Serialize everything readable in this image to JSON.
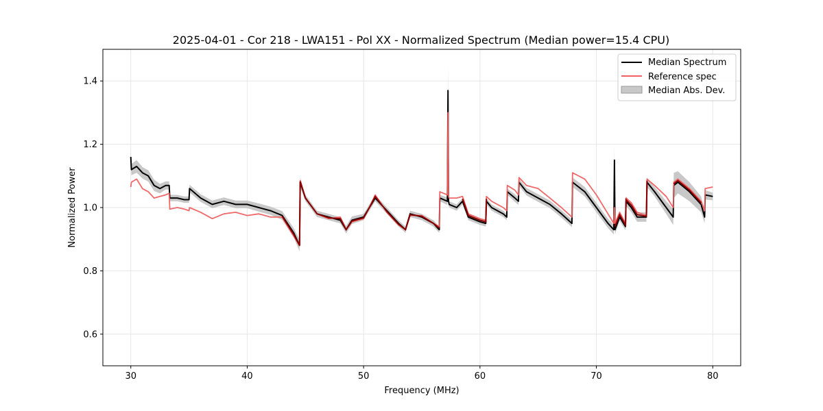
{
  "chart_data": {
    "type": "line",
    "title": "2025-04-01 - Cor 218 - LWA151 - Pol XX - Normalized Spectrum (Median power=15.4 CPU)",
    "xlabel": "Frequency (MHz)",
    "ylabel": "Normalized Power",
    "xlim": [
      27.6,
      82.4
    ],
    "ylim": [
      0.5,
      1.5
    ],
    "xticks": [
      30,
      40,
      50,
      60,
      70,
      80
    ],
    "yticks": [
      0.6,
      0.8,
      1.0,
      1.2,
      1.4
    ],
    "xtick_labels": [
      "30",
      "40",
      "50",
      "60",
      "70",
      "80"
    ],
    "ytick_labels": [
      "0.6",
      "0.8",
      "1.0",
      "1.2",
      "1.4"
    ],
    "grid": true,
    "legend_position": "top-right",
    "colors": {
      "median": "#000000",
      "reference": "#f06060",
      "overlap": "#8b0000",
      "mad_fill": "#c8c8c8",
      "grid": "#e6e6e6"
    },
    "series": [
      {
        "name": "Median Spectrum",
        "x": [
          30.0,
          30.05,
          30.5,
          31.0,
          31.5,
          32.0,
          32.5,
          33.0,
          33.3,
          33.35,
          34.0,
          34.6,
          35.0,
          35.05,
          36.0,
          37.0,
          38.0,
          39.0,
          40.0,
          41.0,
          42.0,
          43.0,
          44.0,
          44.5,
          44.55,
          45.0,
          46.0,
          47.0,
          48.0,
          48.5,
          49.0,
          50.0,
          50.5,
          51.0,
          52.0,
          53.0,
          53.6,
          54.0,
          55.0,
          56.0,
          56.5,
          56.55,
          57.2,
          57.25,
          57.3,
          57.35,
          58.0,
          58.5,
          59.0,
          60.0,
          60.5,
          60.55,
          61.0,
          62.0,
          62.3,
          62.35,
          63.0,
          63.3,
          63.35,
          64.0,
          64.5,
          65.0,
          66.0,
          67.0,
          67.9,
          67.95,
          69.0,
          70.0,
          71.0,
          71.5,
          71.55,
          71.6,
          72.0,
          72.5,
          72.55,
          73.0,
          73.5,
          74.3,
          74.35,
          75.0,
          76.0,
          76.6,
          76.65,
          77.0,
          78.0,
          79.0,
          79.3,
          79.35,
          80.0
        ],
        "values": [
          1.16,
          1.12,
          1.13,
          1.11,
          1.1,
          1.07,
          1.06,
          1.07,
          1.07,
          1.03,
          1.03,
          1.025,
          1.025,
          1.06,
          1.03,
          1.01,
          1.02,
          1.01,
          1.01,
          1.0,
          0.99,
          0.975,
          0.92,
          0.88,
          1.08,
          1.03,
          0.98,
          0.97,
          0.96,
          0.93,
          0.96,
          0.97,
          1.0,
          1.03,
          0.99,
          0.95,
          0.93,
          0.98,
          0.97,
          0.95,
          0.93,
          1.03,
          1.02,
          1.37,
          1.02,
          1.01,
          1.0,
          1.02,
          0.97,
          0.955,
          0.95,
          1.02,
          1.0,
          0.98,
          0.97,
          1.05,
          1.03,
          1.02,
          1.08,
          1.05,
          1.04,
          1.03,
          1.01,
          0.98,
          0.95,
          1.08,
          1.05,
          1.0,
          0.95,
          0.93,
          1.15,
          0.93,
          0.97,
          0.94,
          1.02,
          1.0,
          0.97,
          0.97,
          1.08,
          1.05,
          1.0,
          0.97,
          1.07,
          1.08,
          1.05,
          1.01,
          0.97,
          1.04,
          1.035
        ]
      },
      {
        "name": "Reference spec",
        "x": [
          30.0,
          30.05,
          30.5,
          31.0,
          31.5,
          32.0,
          32.5,
          33.0,
          33.3,
          33.35,
          34.0,
          34.6,
          35.0,
          35.05,
          36.0,
          37.0,
          38.0,
          39.0,
          40.0,
          41.0,
          42.0,
          43.0,
          44.0,
          44.5,
          44.55,
          45.0,
          46.0,
          47.0,
          48.0,
          48.5,
          49.0,
          50.0,
          50.5,
          51.0,
          52.0,
          53.0,
          53.6,
          54.0,
          55.0,
          56.0,
          56.5,
          56.55,
          57.2,
          57.25,
          57.3,
          57.35,
          58.0,
          58.5,
          59.0,
          60.0,
          60.5,
          60.55,
          61.0,
          62.0,
          62.3,
          62.35,
          63.0,
          63.3,
          63.35,
          64.0,
          64.5,
          65.0,
          66.0,
          67.0,
          67.9,
          67.95,
          69.0,
          70.0,
          71.0,
          71.5,
          71.55,
          71.6,
          72.0,
          72.5,
          72.55,
          73.0,
          73.5,
          74.3,
          74.35,
          75.0,
          76.0,
          76.6,
          76.65,
          77.0,
          78.0,
          79.0,
          79.3,
          79.35,
          80.0
        ],
        "values": [
          1.065,
          1.08,
          1.09,
          1.06,
          1.05,
          1.03,
          1.035,
          1.04,
          1.045,
          0.995,
          1.0,
          0.995,
          0.99,
          1.0,
          0.985,
          0.965,
          0.98,
          0.985,
          0.975,
          0.98,
          0.97,
          0.97,
          0.91,
          0.88,
          1.085,
          1.03,
          0.98,
          0.965,
          0.97,
          0.93,
          0.955,
          0.965,
          1.0,
          1.04,
          0.985,
          0.945,
          0.93,
          0.975,
          0.975,
          0.95,
          0.94,
          1.05,
          1.04,
          1.3,
          1.035,
          1.03,
          1.03,
          1.035,
          0.98,
          0.965,
          0.96,
          1.035,
          1.02,
          1.0,
          0.99,
          1.07,
          1.055,
          1.04,
          1.095,
          1.07,
          1.065,
          1.06,
          1.03,
          1.0,
          0.97,
          1.11,
          1.09,
          1.04,
          0.98,
          0.95,
          1.0,
          0.95,
          0.985,
          0.95,
          1.03,
          1.015,
          0.985,
          0.975,
          1.09,
          1.07,
          1.035,
          1.0,
          1.08,
          1.09,
          1.06,
          1.02,
          0.99,
          1.06,
          1.065
        ]
      }
    ],
    "mad_band": {
      "name": "Median Abs. Dev.",
      "half_width": [
        0.018,
        0.018,
        0.02,
        0.018,
        0.018,
        0.018,
        0.015,
        0.013,
        0.013,
        0.01,
        0.01,
        0.01,
        0.01,
        0.012,
        0.012,
        0.012,
        0.012,
        0.012,
        0.012,
        0.013,
        0.013,
        0.014,
        0.015,
        0.018,
        0.015,
        0.01,
        0.01,
        0.01,
        0.01,
        0.012,
        0.012,
        0.01,
        0.01,
        0.01,
        0.01,
        0.01,
        0.01,
        0.01,
        0.01,
        0.01,
        0.01,
        0.01,
        0.012,
        0.08,
        0.01,
        0.01,
        0.01,
        0.01,
        0.01,
        0.01,
        0.01,
        0.01,
        0.01,
        0.01,
        0.01,
        0.01,
        0.012,
        0.012,
        0.012,
        0.012,
        0.012,
        0.012,
        0.012,
        0.012,
        0.012,
        0.015,
        0.015,
        0.015,
        0.015,
        0.015,
        0.05,
        0.015,
        0.012,
        0.012,
        0.015,
        0.015,
        0.015,
        0.015,
        0.015,
        0.015,
        0.02,
        0.025,
        0.04,
        0.035,
        0.03,
        0.025,
        0.02,
        0.015,
        0.012
      ]
    },
    "legend": [
      {
        "label": "Median Spectrum",
        "style": "line",
        "color": "#000000"
      },
      {
        "label": "Reference spec",
        "style": "line",
        "color": "#f06060"
      },
      {
        "label": "Median Abs. Dev.",
        "style": "patch",
        "color": "#c8c8c8"
      }
    ]
  }
}
